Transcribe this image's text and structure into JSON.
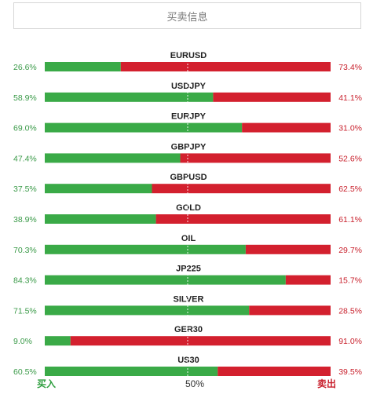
{
  "header": {
    "title": "买卖信息"
  },
  "chart_data": {
    "type": "bar",
    "orientation": "horizontal-stacked",
    "categories": [
      "EURUSD",
      "USDJPY",
      "EURJPY",
      "GBPJPY",
      "GBPUSD",
      "GOLD",
      "OIL",
      "JP225",
      "SILVER",
      "GER30",
      "US30"
    ],
    "series": [
      {
        "name": "买入",
        "values": [
          26.6,
          58.9,
          69.0,
          47.4,
          37.5,
          38.9,
          70.3,
          84.3,
          71.5,
          9.0,
          60.5
        ],
        "labels": [
          "26.6%",
          "58.9%",
          "69.0%",
          "47.4%",
          "37.5%",
          "38.9%",
          "70.3%",
          "84.3%",
          "71.5%",
          "9.0%",
          "60.5%"
        ]
      },
      {
        "name": "卖出",
        "values": [
          73.4,
          41.1,
          31.0,
          52.6,
          62.5,
          61.1,
          29.7,
          15.7,
          28.5,
          91.0,
          39.5
        ],
        "labels": [
          "73.4%",
          "41.1%",
          "31.0%",
          "52.6%",
          "62.5%",
          "61.1%",
          "29.7%",
          "15.7%",
          "28.5%",
          "91.0%",
          "39.5%"
        ]
      }
    ],
    "xlim": [
      0,
      100
    ],
    "midline_label": "50%",
    "colors": {
      "buy": "#3aaa47",
      "sell": "#d3202e",
      "buy_text": "#3a9a48",
      "sell_text": "#c8202c"
    }
  },
  "footer": {
    "buy_label": "买入",
    "mid_label": "50%",
    "sell_label": "卖出"
  }
}
